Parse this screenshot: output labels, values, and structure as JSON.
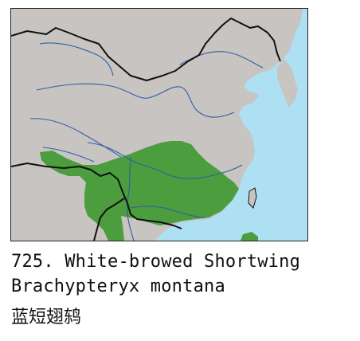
{
  "species": {
    "number_and_name": "725. White-browed Shortwing",
    "scientific_name": "Brachypteryx montana",
    "chinese_name": "蓝短翅鸫"
  },
  "map": {
    "colors": {
      "land": "#c8c4c2",
      "sea": "#aee0f3",
      "range": "#4c9d3d",
      "border": "#111111",
      "river": "#2f5fa6"
    }
  }
}
